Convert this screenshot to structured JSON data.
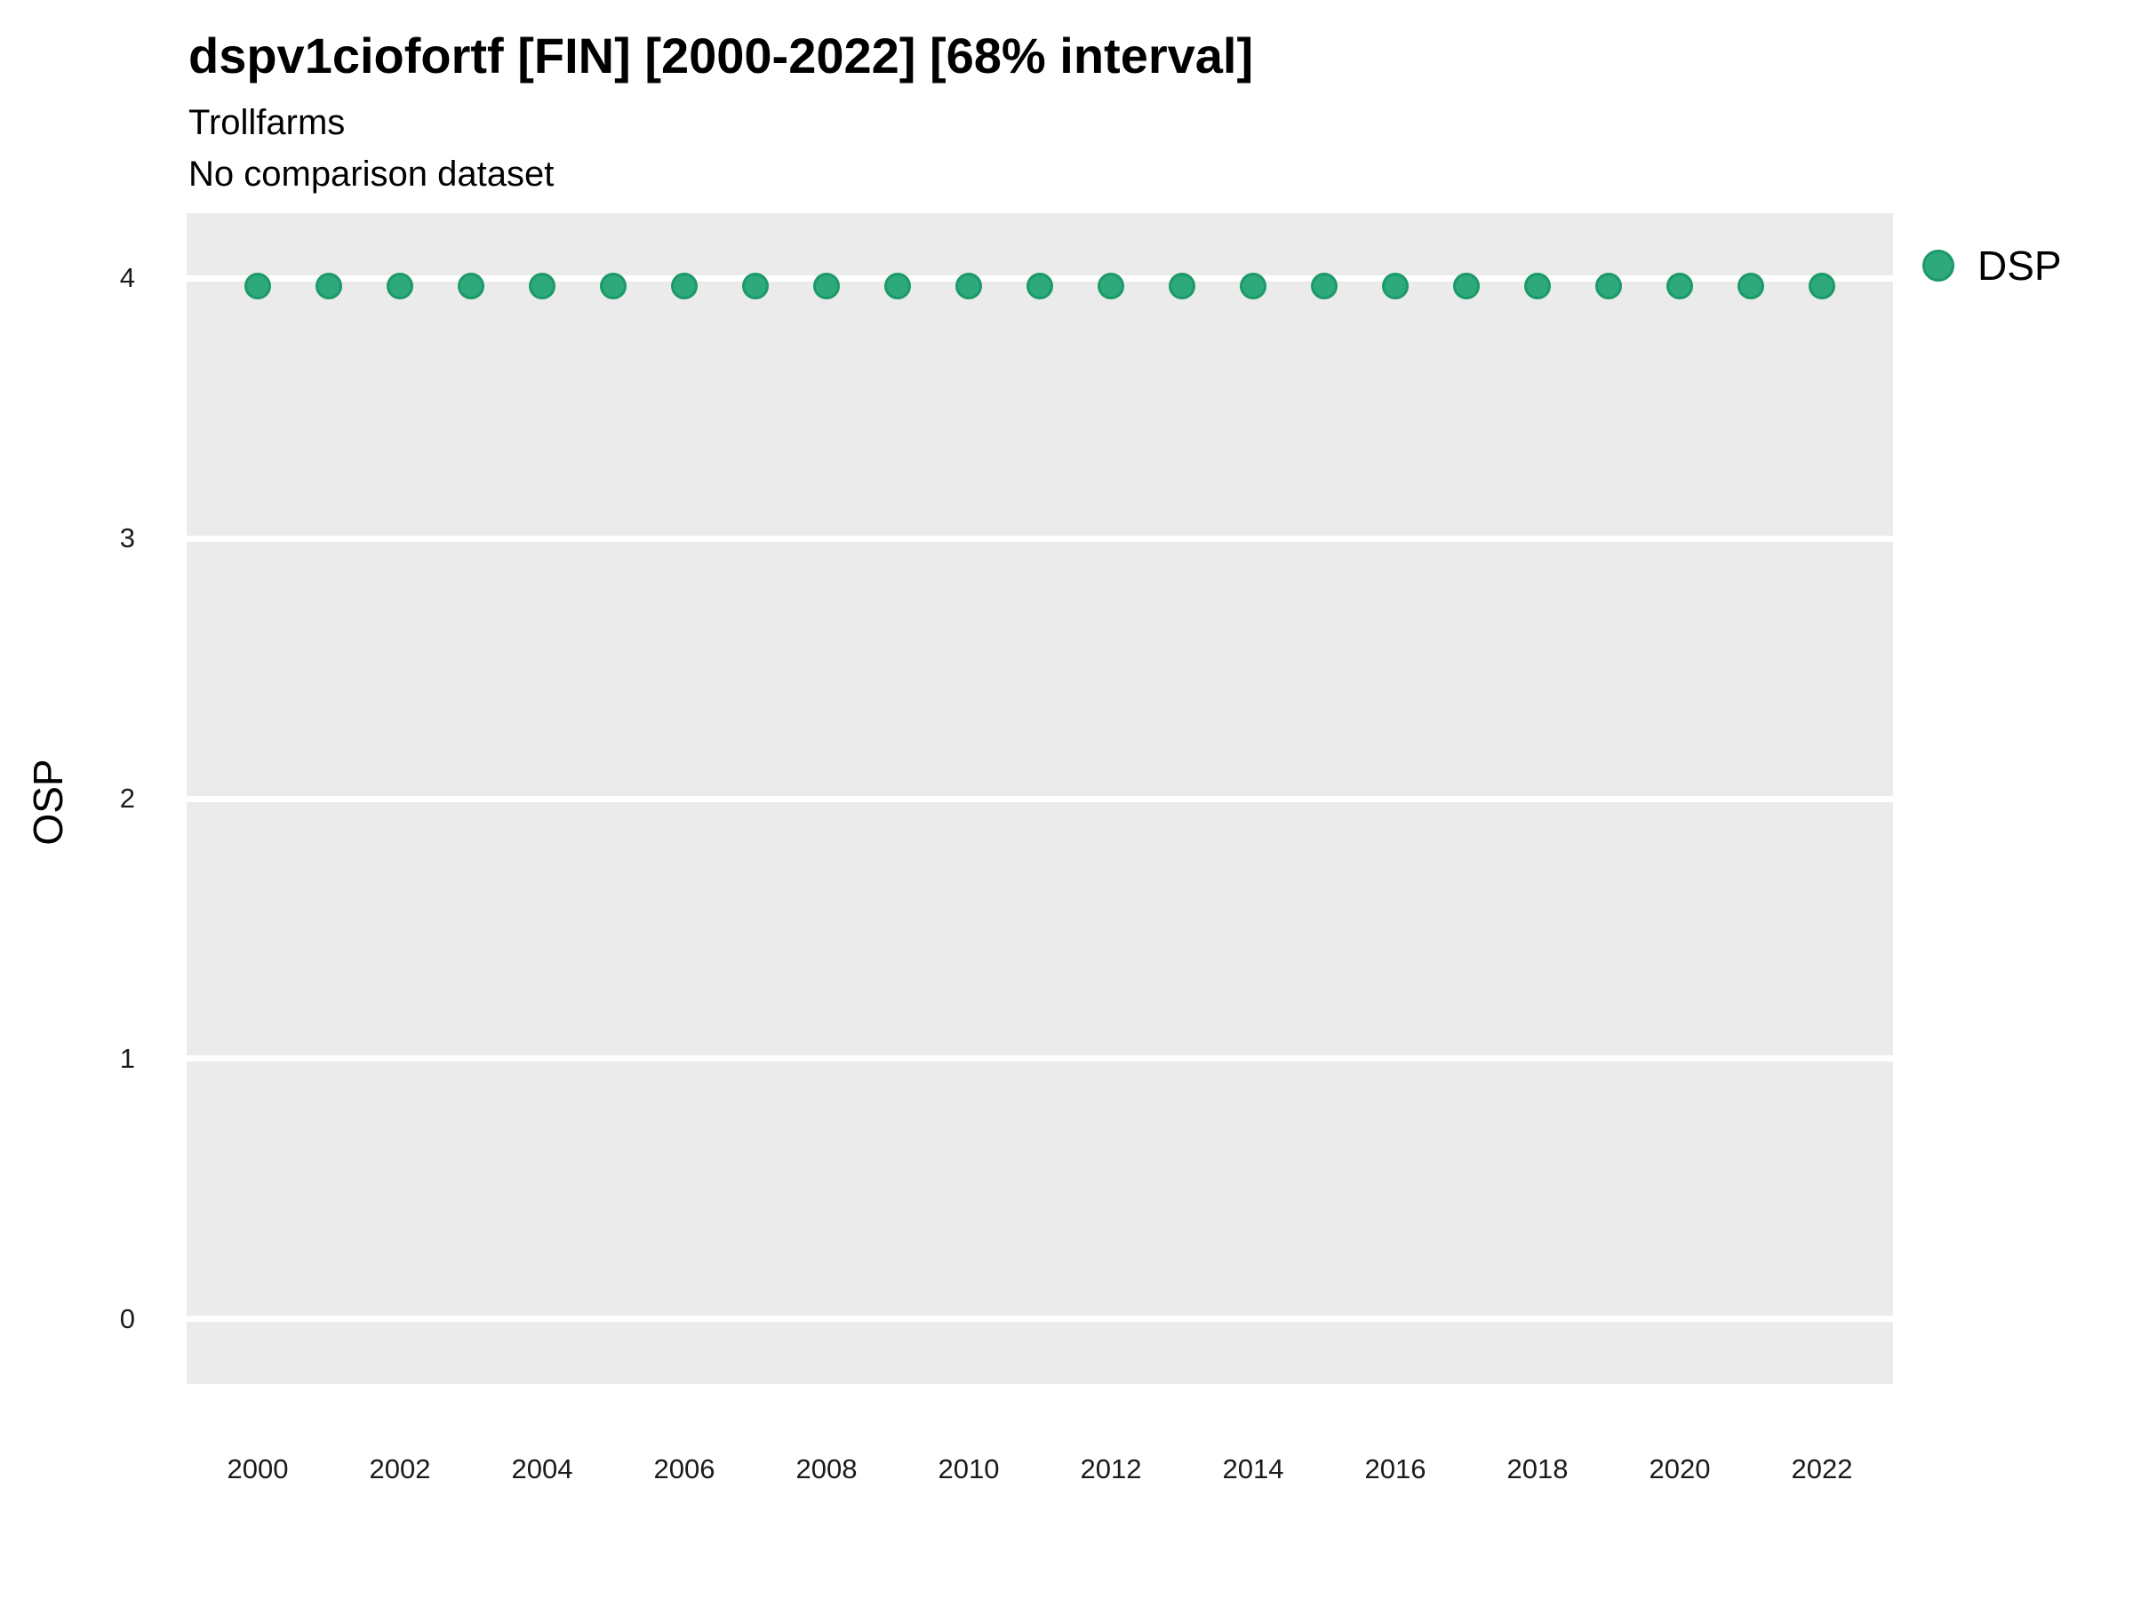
{
  "header": {
    "title": "dspv1ciofortf [FIN] [2000-2022] [68% interval]",
    "subtitle": "Trollfarms",
    "comparison_note": "No comparison dataset"
  },
  "axes": {
    "y_label": "OSP",
    "y_tick_labels": [
      "4",
      "3",
      "2",
      "1",
      "0"
    ],
    "x_tick_labels": [
      "2000",
      "2002",
      "2004",
      "2006",
      "2008",
      "2010",
      "2012",
      "2014",
      "2016",
      "2018",
      "2020",
      "2022"
    ]
  },
  "legend": {
    "items": [
      {
        "label": "DSP",
        "marker": "circle-icon",
        "fill": "#2EA97C",
        "stroke": "#1B9A68"
      }
    ]
  },
  "colors": {
    "panel_background": "#EBEBEB",
    "gridline": "#FFFFFF",
    "point_fill": "#2EA97C",
    "point_stroke": "#1B9A68",
    "text": "#000000"
  },
  "chart_data": {
    "type": "scatter",
    "title": "dspv1ciofortf [FIN] [2000-2022] [68% interval]",
    "subtitle": "Trollfarms",
    "note": "No comparison dataset",
    "xlabel": "",
    "ylabel": "OSP",
    "xlim": [
      1999,
      2023
    ],
    "ylim": [
      -0.25,
      4.25
    ],
    "x_ticks": [
      2000,
      2002,
      2004,
      2006,
      2008,
      2010,
      2012,
      2014,
      2016,
      2018,
      2020,
      2022
    ],
    "y_ticks": [
      0,
      1,
      2,
      3,
      4
    ],
    "grid": "major-horizontal-white",
    "legend_position": "right",
    "series": [
      {
        "name": "DSP",
        "x": [
          2000,
          2001,
          2002,
          2003,
          2004,
          2005,
          2006,
          2007,
          2008,
          2009,
          2010,
          2011,
          2012,
          2013,
          2014,
          2015,
          2016,
          2017,
          2018,
          2019,
          2020,
          2021,
          2022
        ],
        "y": [
          3.97,
          3.97,
          3.97,
          3.97,
          3.97,
          3.97,
          3.97,
          3.97,
          3.97,
          3.97,
          3.97,
          3.97,
          3.97,
          3.97,
          3.97,
          3.97,
          3.97,
          3.97,
          3.97,
          3.97,
          3.97,
          3.97,
          3.97
        ]
      }
    ]
  }
}
